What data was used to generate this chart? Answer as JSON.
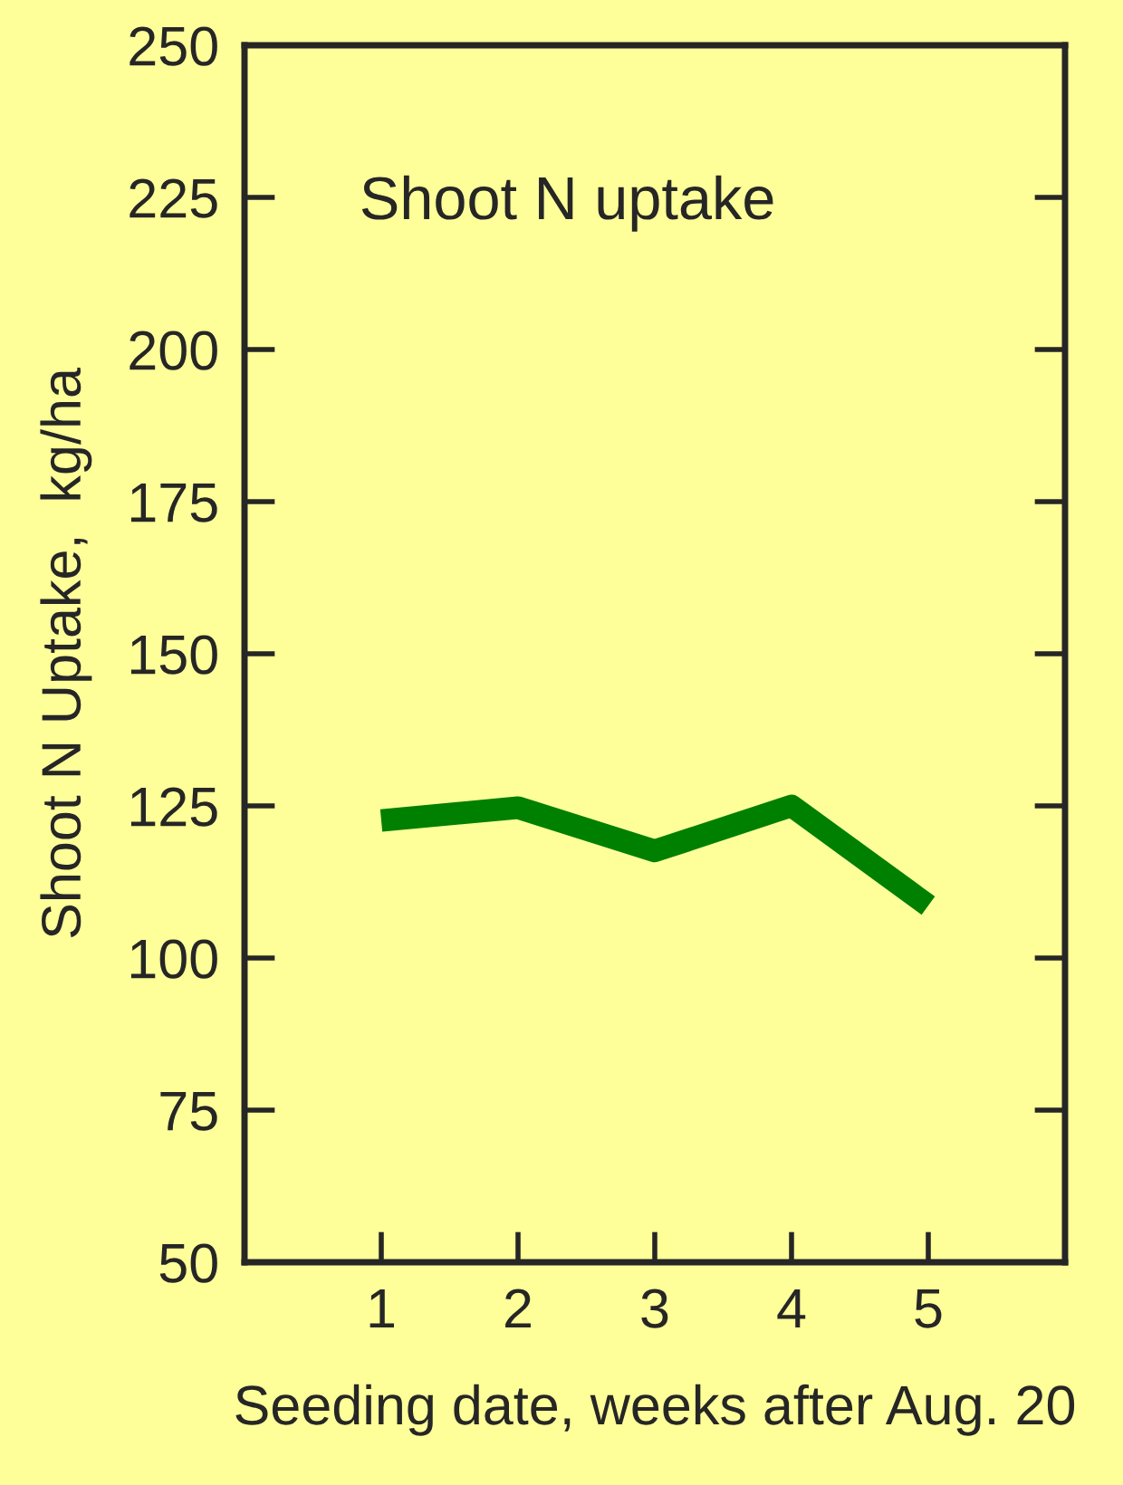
{
  "chart_data": {
    "type": "line",
    "title": "Shoot N uptake",
    "xlabel": "Seeding date, weeks after Aug. 20",
    "ylabel": "Shoot N Uptake,  kg/ha",
    "x": [
      1,
      2,
      3,
      4,
      5
    ],
    "series": [
      {
        "color": "#008000",
        "values": [
          122.6,
          124.7,
          117.6,
          125.0,
          108.6
        ]
      }
    ],
    "xlim": [
      0,
      6
    ],
    "xticks": [
      1,
      2,
      3,
      4,
      5
    ],
    "ylim": [
      50,
      250
    ],
    "yticks": [
      50,
      75,
      100,
      125,
      150,
      175,
      200,
      225,
      250
    ],
    "grid": false,
    "legend": false,
    "marker": "none",
    "line_style": "solid"
  }
}
